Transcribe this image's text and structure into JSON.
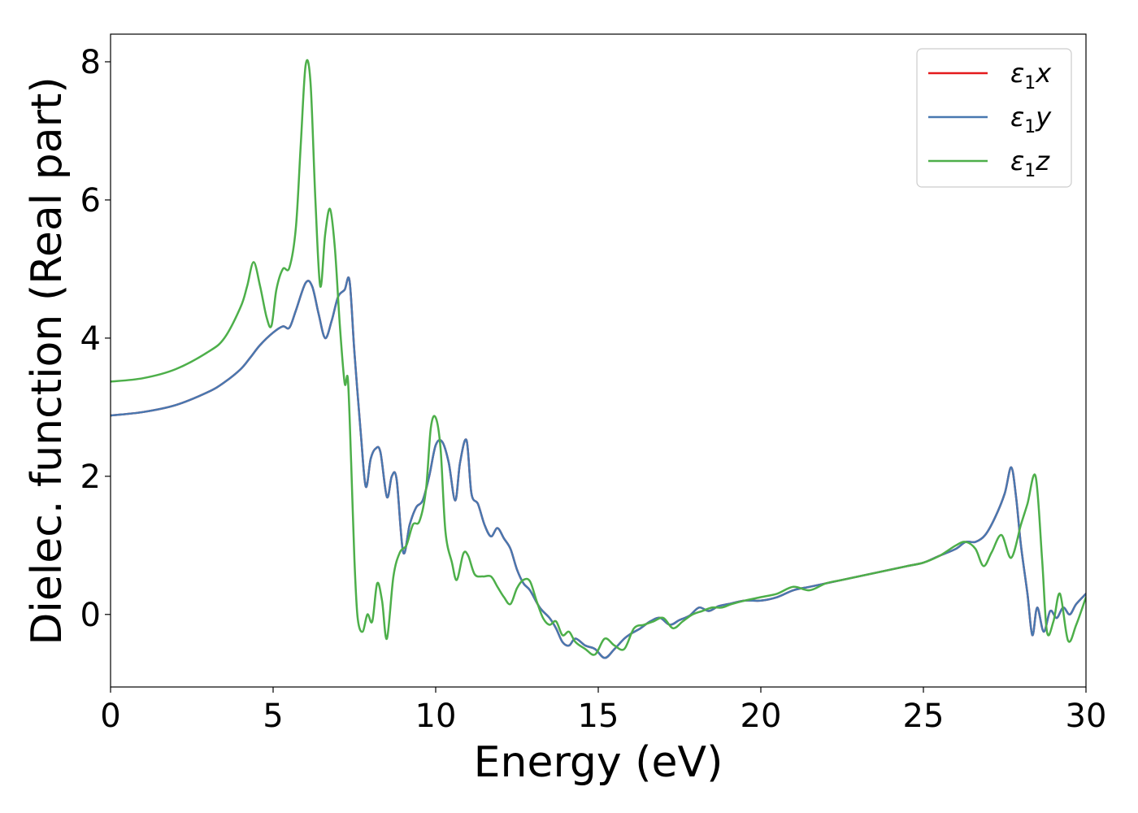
{
  "chart_data": {
    "type": "line",
    "title": "",
    "xlabel": "Energy (eV)",
    "ylabel": "Dielec. function (Real part)",
    "xlim": [
      0,
      30
    ],
    "ylim": [
      -1.05,
      8.4
    ],
    "xticks": [
      0,
      5,
      10,
      15,
      20,
      25,
      30
    ],
    "yticks": [
      0,
      2,
      4,
      6,
      8
    ],
    "xtick_labels": [
      "0",
      "5",
      "10",
      "15",
      "20",
      "25",
      "30"
    ],
    "ytick_labels": [
      "0",
      "2",
      "4",
      "6",
      "8"
    ],
    "grid": false,
    "legend_position": "top-right",
    "legend": {
      "entries": [
        {
          "prefix": "ε",
          "sub": "1",
          "suffix": "x"
        },
        {
          "prefix": "ε",
          "sub": "1",
          "suffix": "y"
        },
        {
          "prefix": "ε",
          "sub": "1",
          "suffix": "z"
        }
      ]
    },
    "series": [
      {
        "name": "ε1x",
        "color": "#e41a1c",
        "x": [
          0,
          1,
          2,
          3,
          3.5,
          4,
          4.3,
          4.6,
          5,
          5.3,
          5.5,
          5.7,
          6,
          6.2,
          6.4,
          6.6,
          6.8,
          7,
          7.2,
          7.35,
          7.5,
          7.7,
          7.85,
          8,
          8.15,
          8.3,
          8.5,
          8.65,
          8.8,
          9,
          9.2,
          9.4,
          9.6,
          9.8,
          10,
          10.2,
          10.4,
          10.6,
          10.75,
          10.95,
          11.1,
          11.3,
          11.5,
          11.7,
          11.9,
          12.1,
          12.3,
          12.5,
          12.7,
          12.9,
          13.2,
          13.5,
          13.7,
          13.9,
          14.1,
          14.3,
          14.6,
          14.9,
          15.2,
          15.5,
          15.8,
          16,
          16.3,
          16.6,
          16.9,
          17.2,
          17.5,
          17.8,
          18.1,
          18.4,
          18.7,
          19,
          19.5,
          20,
          20.5,
          21,
          21.5,
          22,
          22.5,
          23,
          23.5,
          24,
          24.5,
          25,
          25.5,
          26,
          26.3,
          26.6,
          26.9,
          27.2,
          27.5,
          27.7,
          27.85,
          28,
          28.2,
          28.35,
          28.5,
          28.7,
          28.9,
          29.1,
          29.3,
          29.5,
          29.7,
          30
        ],
        "y": [
          2.88,
          2.93,
          3.03,
          3.22,
          3.36,
          3.55,
          3.72,
          3.9,
          4.08,
          4.17,
          4.15,
          4.4,
          4.8,
          4.75,
          4.35,
          4.0,
          4.25,
          4.6,
          4.7,
          4.83,
          3.8,
          2.6,
          1.85,
          2.25,
          2.4,
          2.35,
          1.7,
          2.0,
          1.95,
          0.9,
          1.3,
          1.55,
          1.65,
          2.0,
          2.45,
          2.5,
          2.2,
          1.65,
          2.2,
          2.52,
          1.75,
          1.6,
          1.3,
          1.13,
          1.25,
          1.1,
          0.95,
          0.65,
          0.45,
          0.35,
          0.1,
          -0.05,
          -0.2,
          -0.4,
          -0.45,
          -0.35,
          -0.45,
          -0.5,
          -0.63,
          -0.5,
          -0.35,
          -0.28,
          -0.2,
          -0.1,
          -0.05,
          -0.15,
          -0.08,
          -0.02,
          0.1,
          0.05,
          0.12,
          0.15,
          0.2,
          0.2,
          0.25,
          0.35,
          0.4,
          0.45,
          0.5,
          0.55,
          0.6,
          0.65,
          0.7,
          0.75,
          0.85,
          0.95,
          1.05,
          1.05,
          1.15,
          1.4,
          1.75,
          2.13,
          1.7,
          1.0,
          0.3,
          -0.3,
          0.1,
          -0.25,
          0.05,
          -0.05,
          0.1,
          0.0,
          0.15,
          0.3
        ]
      },
      {
        "name": "ε1y",
        "color": "#4878b0",
        "x": [
          0,
          1,
          2,
          3,
          3.5,
          4,
          4.3,
          4.6,
          5,
          5.3,
          5.5,
          5.7,
          6,
          6.2,
          6.4,
          6.6,
          6.8,
          7,
          7.2,
          7.35,
          7.5,
          7.7,
          7.85,
          8,
          8.15,
          8.3,
          8.5,
          8.65,
          8.8,
          9,
          9.2,
          9.4,
          9.6,
          9.8,
          10,
          10.2,
          10.4,
          10.6,
          10.75,
          10.95,
          11.1,
          11.3,
          11.5,
          11.7,
          11.9,
          12.1,
          12.3,
          12.5,
          12.7,
          12.9,
          13.2,
          13.5,
          13.7,
          13.9,
          14.1,
          14.3,
          14.6,
          14.9,
          15.2,
          15.5,
          15.8,
          16,
          16.3,
          16.6,
          16.9,
          17.2,
          17.5,
          17.8,
          18.1,
          18.4,
          18.7,
          19,
          19.5,
          20,
          20.5,
          21,
          21.5,
          22,
          22.5,
          23,
          23.5,
          24,
          24.5,
          25,
          25.5,
          26,
          26.3,
          26.6,
          26.9,
          27.2,
          27.5,
          27.7,
          27.85,
          28,
          28.2,
          28.35,
          28.5,
          28.7,
          28.9,
          29.1,
          29.3,
          29.5,
          29.7,
          30
        ],
        "y": [
          2.88,
          2.93,
          3.03,
          3.22,
          3.36,
          3.55,
          3.72,
          3.9,
          4.08,
          4.17,
          4.15,
          4.4,
          4.8,
          4.75,
          4.35,
          4.0,
          4.25,
          4.6,
          4.7,
          4.83,
          3.8,
          2.6,
          1.85,
          2.25,
          2.4,
          2.35,
          1.7,
          2.0,
          1.95,
          0.9,
          1.3,
          1.55,
          1.65,
          2.0,
          2.45,
          2.5,
          2.2,
          1.65,
          2.2,
          2.52,
          1.75,
          1.6,
          1.3,
          1.13,
          1.25,
          1.1,
          0.95,
          0.65,
          0.45,
          0.35,
          0.1,
          -0.05,
          -0.2,
          -0.4,
          -0.45,
          -0.35,
          -0.45,
          -0.5,
          -0.63,
          -0.5,
          -0.35,
          -0.28,
          -0.2,
          -0.1,
          -0.05,
          -0.15,
          -0.08,
          -0.02,
          0.1,
          0.05,
          0.12,
          0.15,
          0.2,
          0.2,
          0.25,
          0.35,
          0.4,
          0.45,
          0.5,
          0.55,
          0.6,
          0.65,
          0.7,
          0.75,
          0.85,
          0.95,
          1.05,
          1.05,
          1.15,
          1.4,
          1.75,
          2.13,
          1.7,
          1.0,
          0.3,
          -0.3,
          0.1,
          -0.25,
          0.05,
          -0.05,
          0.1,
          0.0,
          0.15,
          0.3
        ]
      },
      {
        "name": "ε1z",
        "color": "#4daf4a",
        "x": [
          0,
          1,
          2,
          3,
          3.5,
          4,
          4.2,
          4.4,
          4.6,
          4.8,
          4.95,
          5.1,
          5.3,
          5.5,
          5.7,
          5.85,
          6.0,
          6.15,
          6.3,
          6.45,
          6.6,
          6.75,
          6.9,
          7.05,
          7.2,
          7.3,
          7.4,
          7.5,
          7.6,
          7.75,
          7.9,
          8.05,
          8.2,
          8.35,
          8.5,
          8.7,
          8.9,
          9.1,
          9.3,
          9.5,
          9.7,
          9.85,
          10.0,
          10.15,
          10.3,
          10.5,
          10.65,
          10.85,
          11.0,
          11.2,
          11.45,
          11.7,
          11.9,
          12.1,
          12.3,
          12.5,
          12.7,
          12.9,
          13.1,
          13.3,
          13.5,
          13.7,
          13.9,
          14.1,
          14.3,
          14.6,
          14.9,
          15.2,
          15.5,
          15.8,
          16.1,
          16.4,
          16.7,
          17,
          17.3,
          17.6,
          17.9,
          18.2,
          18.5,
          18.8,
          19.1,
          19.5,
          20,
          20.5,
          21,
          21.5,
          22,
          22.5,
          23,
          23.5,
          24,
          24.5,
          25,
          25.5,
          26,
          26.3,
          26.6,
          26.85,
          27.1,
          27.4,
          27.7,
          28.0,
          28.2,
          28.45,
          28.65,
          28.8,
          29.0,
          29.2,
          29.45,
          29.7,
          30
        ],
        "y": [
          3.37,
          3.42,
          3.55,
          3.8,
          4.0,
          4.45,
          4.75,
          5.1,
          4.75,
          4.3,
          4.18,
          4.7,
          5.0,
          5.02,
          5.6,
          6.8,
          7.95,
          7.7,
          6.0,
          4.75,
          5.5,
          5.87,
          5.3,
          4.2,
          3.35,
          3.4,
          2.2,
          0.8,
          -0.05,
          -0.25,
          0.0,
          -0.1,
          0.45,
          0.2,
          -0.35,
          0.55,
          0.9,
          1.0,
          1.3,
          1.35,
          1.8,
          2.7,
          2.85,
          2.4,
          1.2,
          0.75,
          0.5,
          0.88,
          0.85,
          0.58,
          0.55,
          0.55,
          0.4,
          0.25,
          0.15,
          0.38,
          0.5,
          0.48,
          0.2,
          -0.05,
          -0.15,
          -0.1,
          -0.3,
          -0.25,
          -0.4,
          -0.5,
          -0.58,
          -0.35,
          -0.45,
          -0.5,
          -0.2,
          -0.15,
          -0.1,
          -0.05,
          -0.2,
          -0.1,
          0.0,
          0.05,
          0.1,
          0.1,
          0.15,
          0.2,
          0.25,
          0.3,
          0.4,
          0.35,
          0.45,
          0.5,
          0.55,
          0.6,
          0.65,
          0.7,
          0.75,
          0.85,
          1.0,
          1.05,
          0.95,
          0.7,
          0.9,
          1.15,
          0.82,
          1.3,
          1.6,
          2.0,
          0.8,
          -0.25,
          -0.1,
          0.3,
          -0.38,
          -0.15,
          0.25
        ]
      }
    ]
  }
}
